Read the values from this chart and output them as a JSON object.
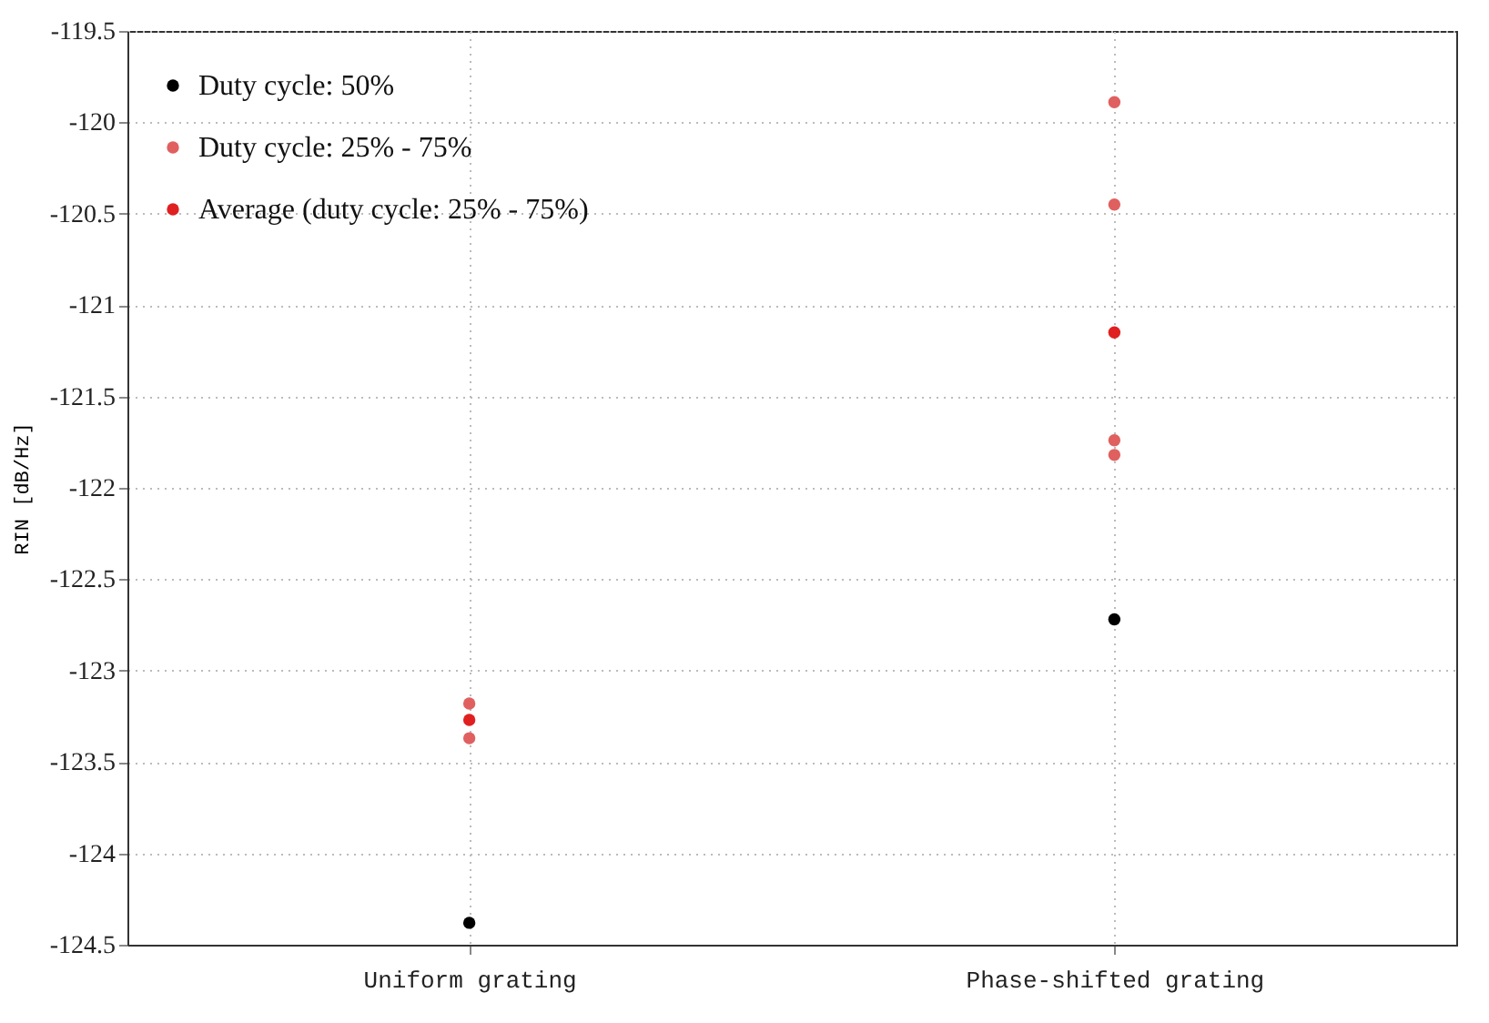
{
  "chart_data": {
    "type": "scatter",
    "ylabel": "RIN [dB/Hz]",
    "categories": [
      "Uniform grating",
      "Phase-shifted grating"
    ],
    "ylim": [
      -124.5,
      -119.5
    ],
    "yticks": [
      -124.5,
      -124,
      -123.5,
      -123,
      -122.5,
      -122,
      -121.5,
      -121,
      -120.5,
      -120,
      -119.5
    ],
    "grid": true,
    "legend": "top left",
    "marker": "circle",
    "series": [
      {
        "name": "Duty cycle: 50%",
        "color": "#000000",
        "x": [
          "Uniform grating",
          "Phase-shifted grating"
        ],
        "values": [
          -124.38,
          -122.72
        ]
      },
      {
        "name": "Duty cycle: 25% - 75%",
        "color": "#e06060",
        "x": [
          "Uniform grating",
          "Uniform grating",
          "Phase-shifted grating",
          "Phase-shifted grating",
          "Phase-shifted grating",
          "Phase-shifted grating"
        ],
        "values": [
          -123.18,
          -123.37,
          -119.89,
          -120.45,
          -121.74,
          -121.82
        ]
      },
      {
        "name": "Average (duty cycle: 25% - 75%)",
        "color": "#e02020",
        "x": [
          "Uniform grating",
          "Phase-shifted grating"
        ],
        "values": [
          -123.27,
          -121.15
        ]
      }
    ]
  }
}
